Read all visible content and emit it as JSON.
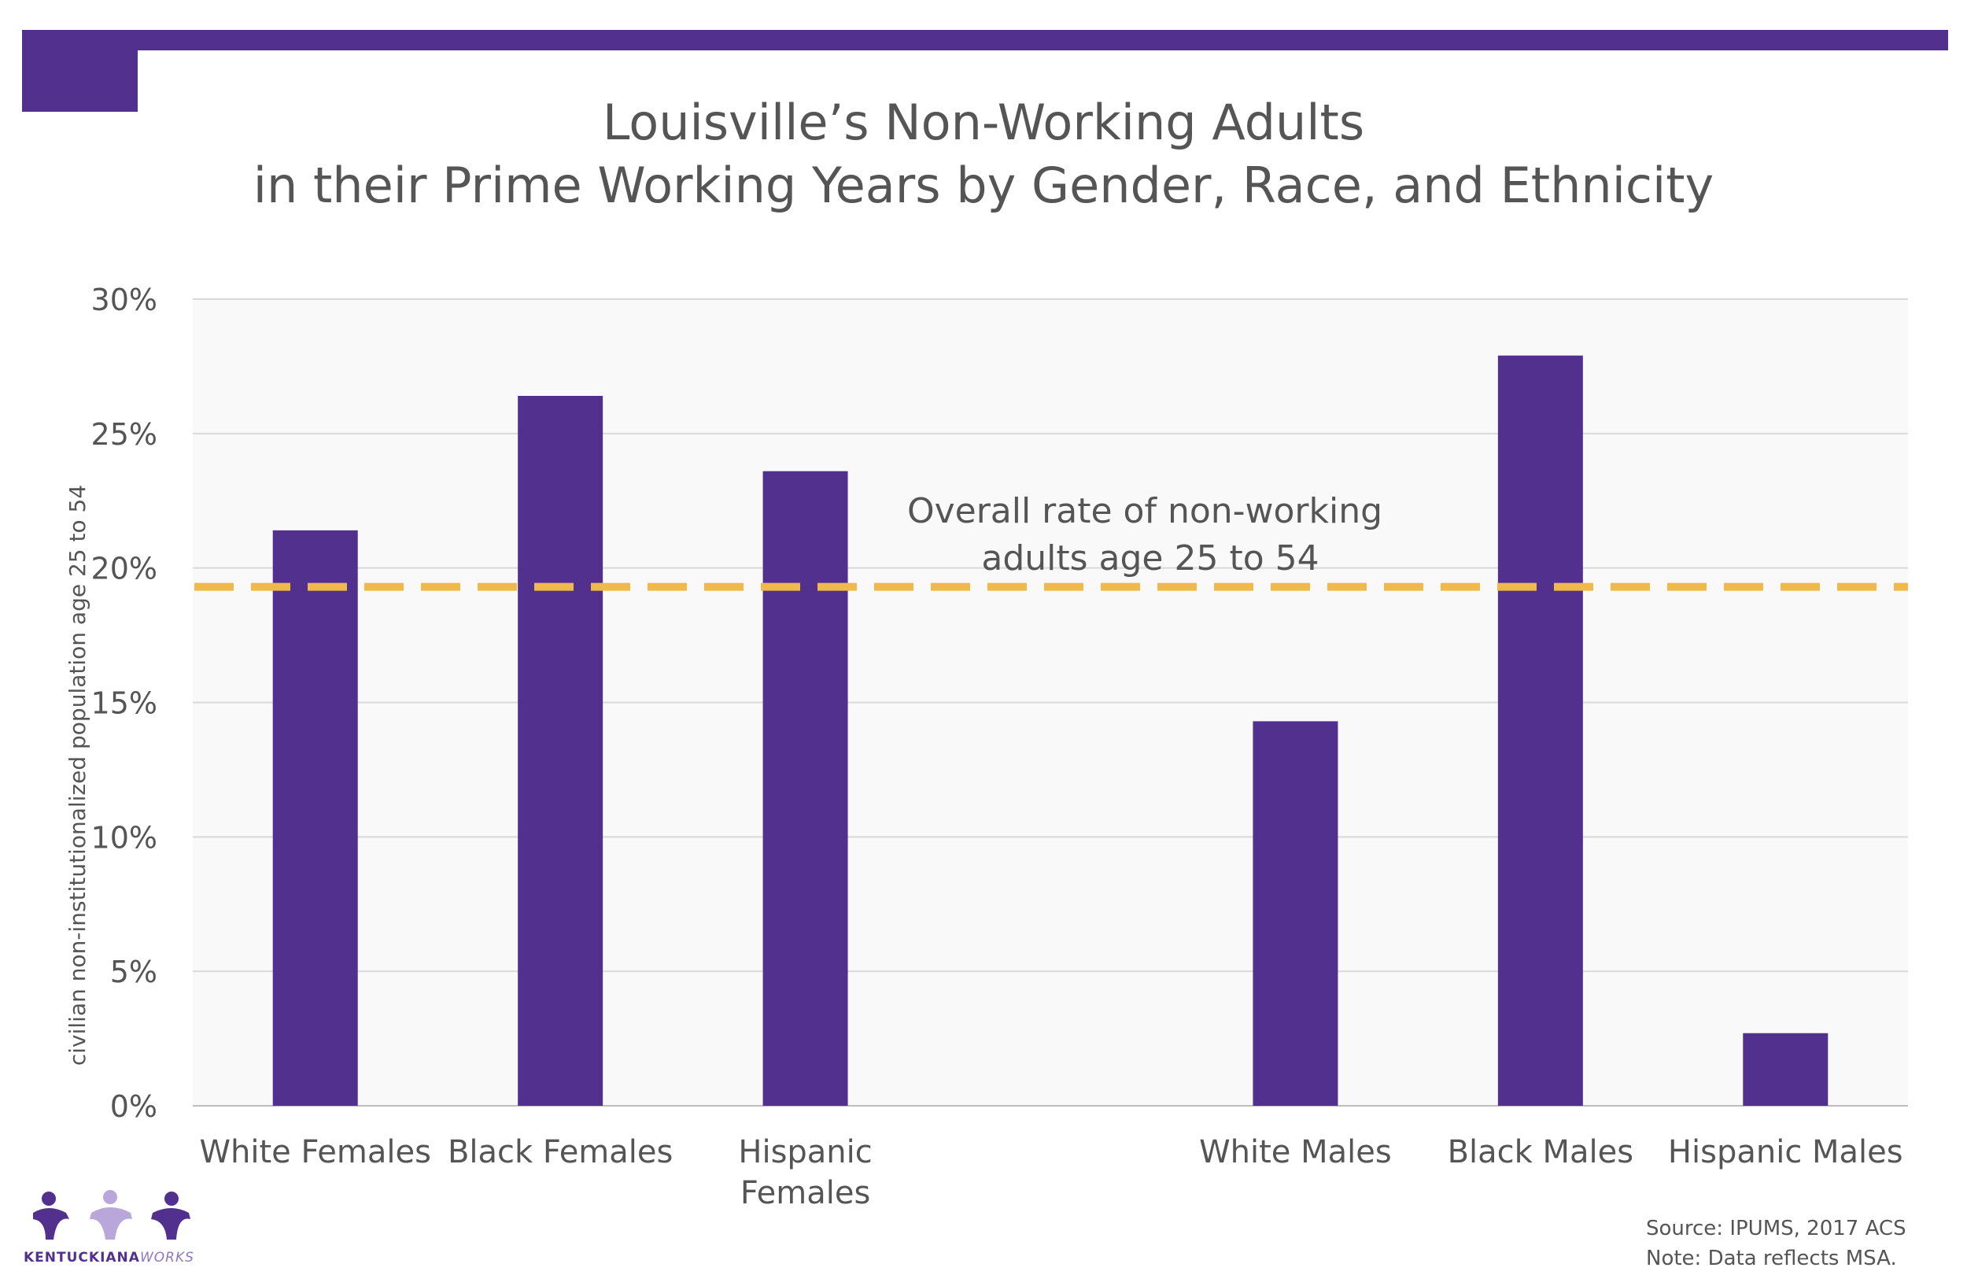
{
  "header": {
    "title_line1": "Louisville’s Non-Working Adults",
    "title_line2": "in their Prime Working Years by Gender, Race, and Ethnicity",
    "accent_color": "#52308e"
  },
  "chart_data": {
    "type": "bar",
    "title": "Louisville’s Non-Working Adults in their Prime Working Years by Gender, Race, and Ethnicity",
    "categories": [
      [
        "White Females"
      ],
      [
        "Black Females"
      ],
      [
        "Hispanic",
        "Females"
      ],
      [
        ""
      ],
      [
        "White Males"
      ],
      [
        "Black Males"
      ],
      [
        "Hispanic Males"
      ]
    ],
    "values": [
      21.4,
      26.4,
      23.6,
      null,
      14.3,
      27.9,
      2.7
    ],
    "ylabel": "civilian non-institutionalized population age 25 to 54",
    "ylim": [
      0,
      30
    ],
    "yticks": [
      0,
      5,
      10,
      15,
      20,
      25,
      30
    ],
    "ytick_labels": [
      "0%",
      "5%",
      "10%",
      "15%",
      "20%",
      "25%",
      "30%"
    ],
    "grid": true,
    "bar_color": "#52308e",
    "reference_line": {
      "value": 19.3,
      "color": "#f0b94b",
      "label_lines": [
        "Overall rate of non-working",
        "adults age 25 to 54"
      ]
    }
  },
  "footer": {
    "source": "Source: IPUMS, 2017 ACS",
    "note": "Note: Data reflects MSA.",
    "logo_text_main": "KENTUCKIANA",
    "logo_text_accent": "WORKS"
  }
}
